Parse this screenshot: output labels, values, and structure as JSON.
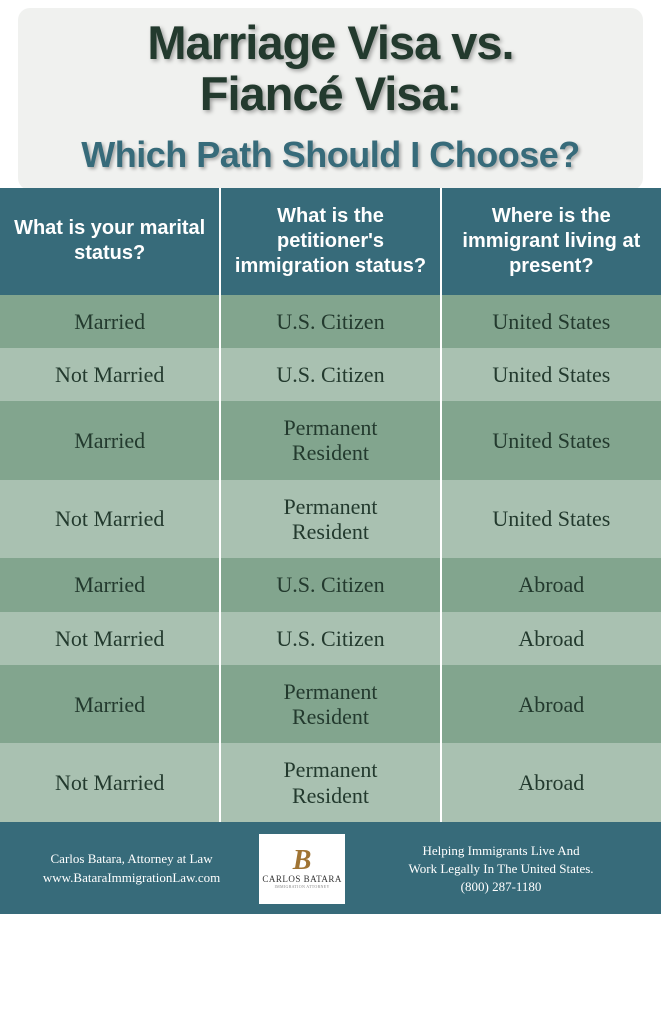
{
  "header": {
    "title_line1": "Marriage Visa vs.",
    "title_line2": "Fiancé Visa:",
    "subtitle": "Which Path Should I Choose?",
    "title_color": "#233a2e",
    "subtitle_color": "#376b7a",
    "card_bg": "#f0f1ef"
  },
  "table": {
    "header_bg": "#376b7a",
    "header_text_color": "#ffffff",
    "row_dark_bg": "#82a58e",
    "row_light_bg": "#a9c1b1",
    "cell_text_color": "#233a2e",
    "divider_color": "#ffffff",
    "columns": [
      "What is your marital status?",
      "What is the petitioner's immigration status?",
      "Where is the immigrant living at present?"
    ],
    "rows": [
      {
        "shade": "dark",
        "cells": [
          "Married",
          "U.S. Citizen",
          "United States"
        ]
      },
      {
        "shade": "light",
        "cells": [
          "Not Married",
          "U.S. Citizen",
          "United States"
        ]
      },
      {
        "shade": "dark",
        "cells": [
          "Married",
          "Permanent Resident",
          "United States"
        ]
      },
      {
        "shade": "light",
        "cells": [
          "Not Married",
          "Permanent Resident",
          "United States"
        ]
      },
      {
        "shade": "dark",
        "cells": [
          "Married",
          "U.S. Citizen",
          "Abroad"
        ]
      },
      {
        "shade": "light",
        "cells": [
          "Not Married",
          "U.S. Citizen",
          "Abroad"
        ]
      },
      {
        "shade": "dark",
        "cells": [
          "Married",
          "Permanent Resident",
          "Abroad"
        ]
      },
      {
        "shade": "light",
        "cells": [
          "Not Married",
          "Permanent Resident",
          "Abroad"
        ]
      }
    ]
  },
  "footer": {
    "bg": "#376b7a",
    "left_line1": "Carlos Batara, Attorney at Law",
    "left_line2": "www.BataraImmigrationLaw.com",
    "logo_name": "CARLOS BATARA",
    "right_line1": "Helping Immigrants Live And",
    "right_line2": "Work Legally In The United States.",
    "right_line3": "(800) 287-1180"
  }
}
